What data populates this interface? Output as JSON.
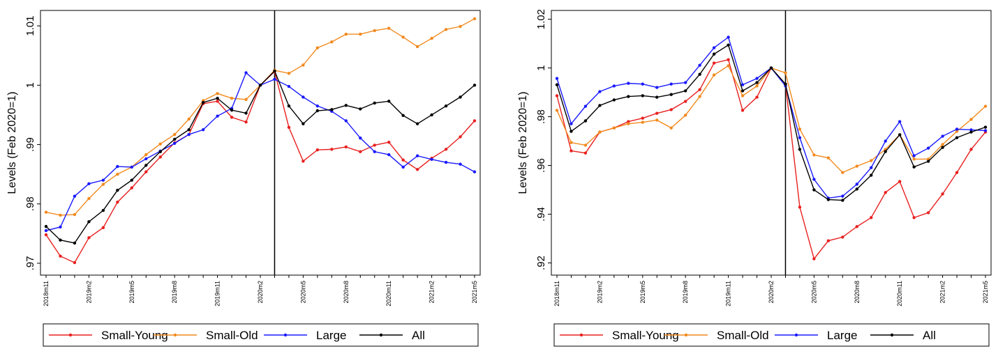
{
  "chart_data": [
    {
      "type": "line",
      "y_label": "Levels (Feb 2020=1)",
      "categories": [
        "2018m11",
        null,
        null,
        "2019m2",
        null,
        null,
        "2019m5",
        null,
        null,
        "2019m8",
        null,
        null,
        "2019m11",
        null,
        null,
        "2020m2",
        null,
        null,
        "2020m5",
        null,
        null,
        "2020m8",
        null,
        null,
        "2020m11",
        null,
        null,
        "2021m2",
        null,
        null,
        "2021m5"
      ],
      "vline_index": 16,
      "ylim": [
        0.968,
        1.0126
      ],
      "yticks": [
        {
          "value": 0.97,
          "label": ".97"
        },
        {
          "value": 0.98,
          "label": ".98"
        },
        {
          "value": 0.99,
          "label": ".99"
        },
        1,
        1.01
      ],
      "series": [
        {
          "name": "Small-Young",
          "color": "#e8201f",
          "values": [
            0.9748,
            0.9712,
            0.9701,
            0.9743,
            0.976,
            0.9803,
            0.9827,
            0.9854,
            0.9879,
            0.9903,
            0.9917,
            0.9969,
            0.9973,
            0.9946,
            0.9938,
            1.0,
            1.0023,
            0.9929,
            0.9872,
            0.9891,
            0.9892,
            0.9896,
            0.9888,
            0.9899,
            0.9904,
            0.9874,
            0.9858,
            0.9877,
            0.9892,
            0.9913,
            0.994
          ]
        },
        {
          "name": "Small-Old",
          "color": "#f28a1e",
          "values": [
            0.9786,
            0.9781,
            0.9782,
            0.9809,
            0.9833,
            0.985,
            0.9862,
            0.9883,
            0.9901,
            0.9917,
            0.9943,
            0.9974,
            0.9986,
            0.9978,
            0.9976,
            1.0,
            1.0025,
            1.002,
            1.0034,
            1.0063,
            1.0073,
            1.0086,
            1.0086,
            1.0092,
            1.0096,
            1.0081,
            1.0065,
            1.0079,
            1.0094,
            1.0099,
            1.0112
          ]
        },
        {
          "name": "Large",
          "color": "#1a1aff",
          "values": [
            0.9755,
            0.9761,
            0.9813,
            0.9834,
            0.984,
            0.9863,
            0.9862,
            0.9876,
            0.9889,
            0.9902,
            0.9917,
            0.9925,
            0.9948,
            0.9961,
            1.0021,
            1.0,
            1.001,
            0.9998,
            0.998,
            0.9965,
            0.9956,
            0.994,
            0.9911,
            0.9888,
            0.9883,
            0.9862,
            0.9881,
            0.9875,
            0.987,
            0.9867,
            0.9854
          ]
        },
        {
          "name": "All",
          "color": "#000000",
          "values": [
            0.9762,
            0.9739,
            0.9734,
            0.977,
            0.9789,
            0.9823,
            0.984,
            0.9865,
            0.9888,
            0.9909,
            0.9925,
            0.9971,
            0.9978,
            0.9958,
            0.9953,
            1.0,
            1.0024,
            0.9965,
            0.9935,
            0.9957,
            0.9959,
            0.9966,
            0.996,
            0.997,
            0.9973,
            0.9949,
            0.9935,
            0.995,
            0.9965,
            0.998,
            1.0
          ]
        }
      ]
    },
    {
      "type": "line",
      "y_label": "Levels (Feb 2020=1)",
      "categories": [
        "2018m11",
        null,
        null,
        "2019m2",
        null,
        null,
        "2019m5",
        null,
        null,
        "2019m8",
        null,
        null,
        "2019m11",
        null,
        null,
        "2020m2",
        null,
        null,
        "2020m5",
        null,
        null,
        "2020m8",
        null,
        null,
        "2020m11",
        null,
        null,
        "2021m2",
        null,
        null,
        "2021m5"
      ],
      "vline_index": 16,
      "ylim": [
        0.915,
        1.0236
      ],
      "yticks": [
        {
          "value": 0.92,
          "label": ".92"
        },
        {
          "value": 0.94,
          "label": ".94"
        },
        {
          "value": 0.96,
          "label": ".96"
        },
        {
          "value": 0.98,
          "label": ".98"
        },
        1,
        1.02
      ],
      "series": [
        {
          "name": "Small-Young",
          "color": "#e8201f",
          "values": [
            0.9886,
            0.966,
            0.9651,
            0.9737,
            0.9754,
            0.978,
            0.9794,
            0.9814,
            0.9829,
            0.9863,
            0.9911,
            1.002,
            1.0034,
            0.9826,
            0.988,
            1.0,
            0.9934,
            0.9429,
            0.9217,
            0.9291,
            0.9306,
            0.9349,
            0.9386,
            0.9489,
            0.9534,
            0.9386,
            0.9406,
            0.9483,
            0.9571,
            0.9666,
            0.9737
          ]
        },
        {
          "name": "Small-Old",
          "color": "#f28a1e",
          "values": [
            0.9826,
            0.9694,
            0.9683,
            0.9737,
            0.9754,
            0.9771,
            0.9777,
            0.9786,
            0.9754,
            0.9806,
            0.9883,
            0.9971,
            1.0009,
            0.9886,
            0.9926,
            1.0,
            0.998,
            0.9749,
            0.9643,
            0.9631,
            0.9571,
            0.9597,
            0.962,
            0.9666,
            0.9726,
            0.9626,
            0.9626,
            0.9686,
            0.974,
            0.9789,
            0.9843
          ]
        },
        {
          "name": "Large",
          "color": "#1a1aff",
          "values": [
            0.9957,
            0.9771,
            0.9843,
            0.9903,
            0.9926,
            0.9937,
            0.9934,
            0.992,
            0.9934,
            0.994,
            1.0011,
            1.0083,
            1.0126,
            0.9931,
            0.9957,
            1.0,
            0.9926,
            0.9714,
            0.9543,
            0.9466,
            0.9474,
            0.9523,
            0.9591,
            0.97,
            0.978,
            0.964,
            0.9671,
            0.972,
            0.9749,
            0.9746,
            0.9743
          ]
        },
        {
          "name": "All",
          "color": "#000000",
          "values": [
            0.9931,
            0.974,
            0.9783,
            0.9846,
            0.9869,
            0.9883,
            0.9886,
            0.988,
            0.9891,
            0.9906,
            0.9974,
            1.0057,
            1.0094,
            0.9906,
            0.994,
            1.0,
            0.9934,
            0.9666,
            0.95,
            0.946,
            0.9457,
            0.9503,
            0.956,
            0.9657,
            0.9726,
            0.9594,
            0.9617,
            0.9674,
            0.9714,
            0.9737,
            0.9757
          ]
        }
      ]
    }
  ]
}
